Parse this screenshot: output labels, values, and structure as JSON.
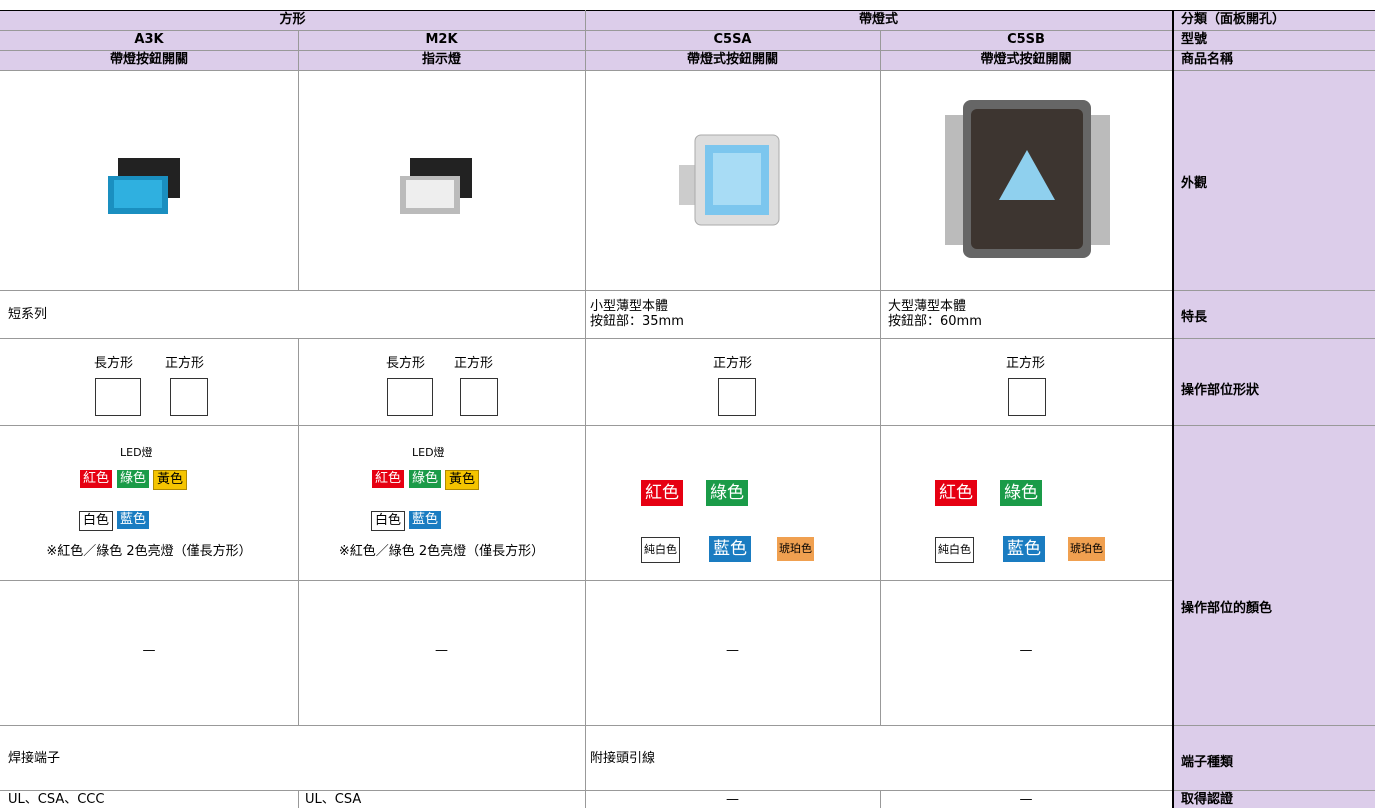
{
  "groups": [
    "方形",
    "帶燈式"
  ],
  "row_labels": {
    "category": "分類（面板開孔）",
    "model": "型號",
    "name": "商品名稱",
    "appearance": "外觀",
    "features": "特長",
    "shape": "操作部位形狀",
    "color": "操作部位的顏色",
    "terminal": "端子種類",
    "certification": "取得認證"
  },
  "columns": [
    {
      "model": "A3K",
      "name": "帶燈按鈕開關",
      "shapes": [
        "長方形",
        "正方形"
      ],
      "light": "LED燈",
      "colors": [
        "紅色",
        "綠色",
        "黃色",
        "白色",
        "藍色"
      ],
      "note": "※紅色／綠色 2色亮燈（僅長方形）",
      "dash": "—",
      "certification": "UL、CSA、CCC"
    },
    {
      "model": "M2K",
      "name": "指示燈",
      "shapes": [
        "長方形",
        "正方形"
      ],
      "light": "LED燈",
      "colors": [
        "紅色",
        "綠色",
        "黃色",
        "白色",
        "藍色"
      ],
      "note": "※紅色／綠色 2色亮燈（僅長方形）",
      "dash": "—",
      "certification": "UL、CSA"
    },
    {
      "model": "C5SA",
      "name": "帶燈式按鈕開關",
      "features": [
        "小型薄型本體",
        "按鈕部：35mm"
      ],
      "shapes": [
        "正方形"
      ],
      "colors": [
        "紅色",
        "綠色",
        "純白色",
        "藍色",
        "琥珀色"
      ],
      "dash": "—",
      "certification": "—"
    },
    {
      "model": "C5SB",
      "name": "帶燈式按鈕開關",
      "features": [
        "大型薄型本體",
        "按鈕部：60mm"
      ],
      "shapes": [
        "正方形"
      ],
      "colors": [
        "紅色",
        "綠色",
        "純白色",
        "藍色",
        "琥珀色"
      ],
      "dash": "—",
      "certification": "—"
    }
  ],
  "shared": {
    "features_square": "短系列",
    "terminal_square": "焊接端子",
    "terminal_lit": "附接頭引線"
  }
}
